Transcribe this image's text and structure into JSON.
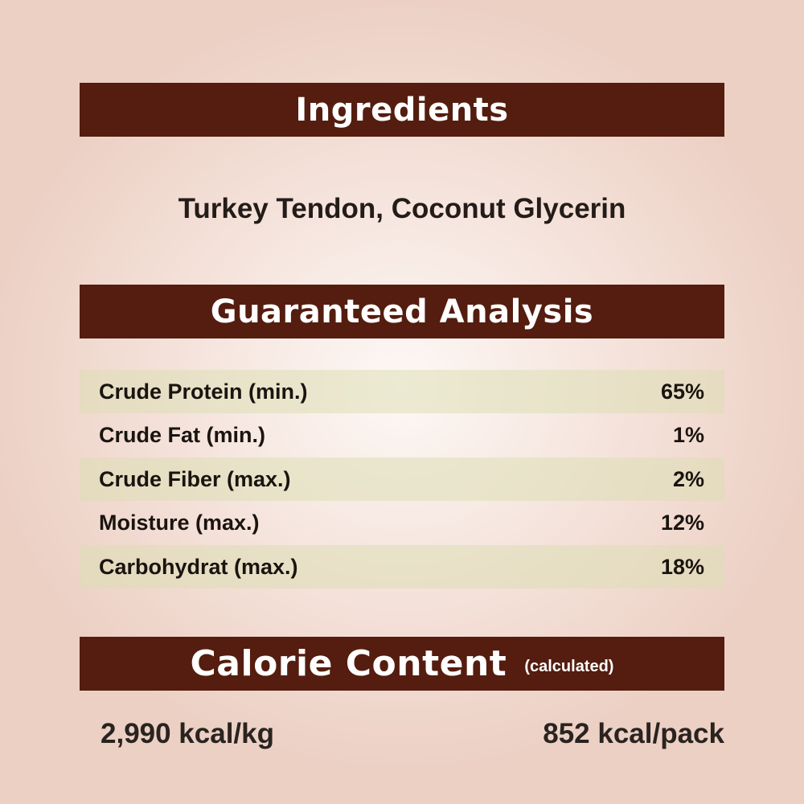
{
  "ingredients": {
    "title": "Ingredients",
    "text": "Turkey Tendon, Coconut Glycerin"
  },
  "analysis": {
    "title": "Guaranteed Analysis",
    "rows": [
      {
        "label": "Crude Protein (min.)",
        "value": "65%"
      },
      {
        "label": "Crude Fat (min.)",
        "value": "1%"
      },
      {
        "label": "Crude Fiber (max.)",
        "value": "2%"
      },
      {
        "label": "Moisture (max.)",
        "value": "12%"
      },
      {
        "label": "Carbohydrat (max.)",
        "value": "18%"
      }
    ]
  },
  "calorie": {
    "title": "Calorie Content",
    "subtitle": "(calculated)",
    "per_kg": "2,990 kcal/kg",
    "per_pack": "852 kcal/pack"
  },
  "colors": {
    "banner": "#541d0f",
    "row_shade": "#e3e2c4"
  }
}
